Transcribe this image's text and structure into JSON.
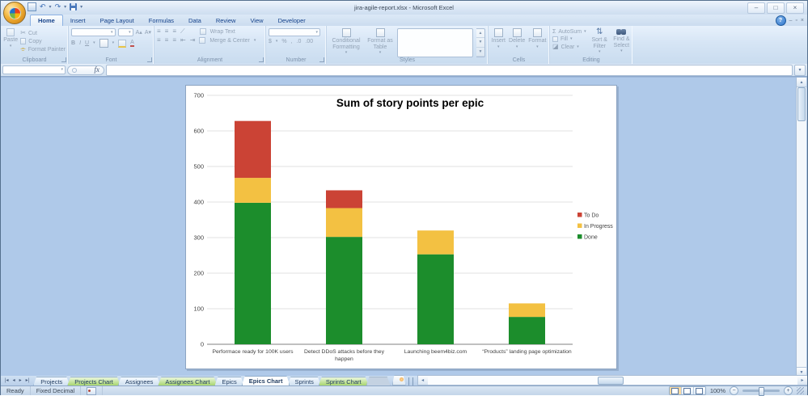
{
  "window": {
    "title": "jira-agile-report.xlsx - Microsoft Excel",
    "controls": {
      "minimize": "–",
      "maximize": "□",
      "close": "×"
    }
  },
  "workbook_controls": {
    "help": "?",
    "minimize": "–",
    "restore": "▫",
    "close": "×"
  },
  "icons": {
    "dropdown": "▾",
    "undo": "↶",
    "redo": "↷",
    "scissors": "✂",
    "sigma": "Σ",
    "percent": "%",
    "comma": ",",
    "currency": "$",
    "inc_decimal": ".0",
    "dec_decimal": ".00",
    "bold": "B",
    "italic": "I",
    "underline": "U",
    "grow_font": "A▴",
    "shrink_font": "A▾",
    "align_lines": "≡",
    "sort": "⇅",
    "first_sheet": "|◂",
    "prev_sheet": "◂",
    "next_sheet": "▸",
    "last_sheet": "▸|",
    "scroll_left": "◂",
    "scroll_right": "▸",
    "scroll_up": "▲",
    "scroll_down": "▼",
    "zoom_out": "−",
    "zoom_in": "+"
  },
  "ribbon": {
    "active_tab": "Home",
    "tabs": [
      "Home",
      "Insert",
      "Page Layout",
      "Formulas",
      "Data",
      "Review",
      "View",
      "Developer"
    ],
    "clipboard": {
      "label": "Clipboard",
      "paste": "Paste",
      "cut": "Cut",
      "copy": "Copy",
      "format_painter": "Format Painter"
    },
    "font": {
      "label": "Font"
    },
    "alignment": {
      "label": "Alignment",
      "wrap_text": "Wrap Text",
      "merge_center": "Merge & Center"
    },
    "number": {
      "label": "Number"
    },
    "styles": {
      "label": "Styles",
      "conditional_formatting": "Conditional Formatting",
      "format_as_table": "Format as Table"
    },
    "cells": {
      "label": "Cells",
      "insert": "Insert",
      "delete": "Delete",
      "format": "Format"
    },
    "editing": {
      "label": "Editing",
      "autosum": "AutoSum",
      "fill": "Fill",
      "clear": "Clear",
      "sort_filter": "Sort & Filter",
      "find_select": "Find & Select"
    }
  },
  "formula_bar": {
    "name_box": "",
    "fx": "fx",
    "formula": ""
  },
  "sheet_tabs": {
    "tabs": [
      {
        "label": "Projects",
        "kind": "normal"
      },
      {
        "label": "Projects Chart",
        "kind": "chart"
      },
      {
        "label": "Assignees",
        "kind": "normal"
      },
      {
        "label": "Assignees Chart",
        "kind": "chart"
      },
      {
        "label": "Epics",
        "kind": "normal"
      },
      {
        "label": "Epics Chart",
        "kind": "active"
      },
      {
        "label": "Sprints",
        "kind": "normal"
      },
      {
        "label": "Sprints Chart",
        "kind": "chart"
      }
    ]
  },
  "status_bar": {
    "mode": "Ready",
    "indicator": "Fixed Decimal",
    "zoom": "100%"
  },
  "chart_data": {
    "type": "bar",
    "stacked": true,
    "title": "Sum of story points per epic",
    "categories": [
      "Performace ready for 100K users",
      "Detect DDoS attacks before they happen",
      "Launching beem4biz.com",
      "“Products” landing page optimization"
    ],
    "category_lines": [
      [
        "Performace ready for 100K users"
      ],
      [
        "Detect DDoS attacks before they",
        "happen"
      ],
      [
        "Launching beem4biz.com"
      ],
      [
        "“Products” landing page optimization"
      ]
    ],
    "series": [
      {
        "name": "To Do",
        "color": "#CB4335",
        "values": [
          160,
          50,
          0,
          0
        ]
      },
      {
        "name": "In Progress",
        "color": "#F3C142",
        "values": [
          70,
          81,
          67,
          38
        ]
      },
      {
        "name": "Done",
        "color": "#1C8D2C",
        "values": [
          398,
          302,
          253,
          77
        ]
      }
    ],
    "stack_order_bottom_to_top": [
      "Done",
      "In Progress",
      "To Do"
    ],
    "ylim": [
      0,
      700
    ],
    "ytick_step": 100,
    "grid": true,
    "legend_position": "right",
    "text_color": "#3F3F3F",
    "grid_color": "#D6D6D6",
    "axis_color": "#808080"
  }
}
